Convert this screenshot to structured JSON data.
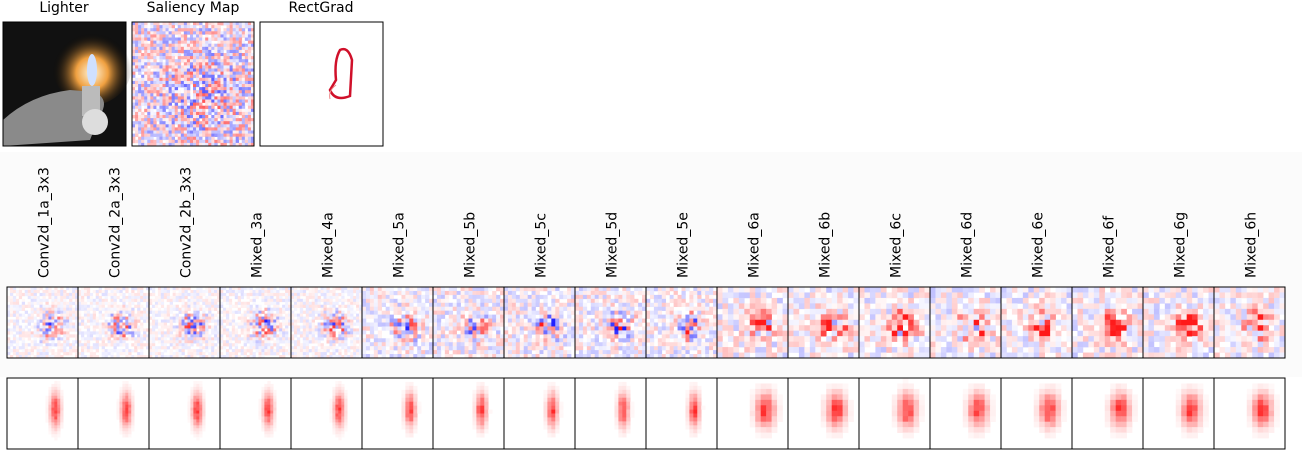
{
  "panels": [
    "Lighter",
    "Saliency Map",
    "RectGrad"
  ],
  "layers": [
    "Conv2d_1a_3x3",
    "Conv2d_2a_3x3",
    "Conv2d_2b_3x3",
    "Mixed_3a",
    "Mixed_4a",
    "Mixed_5a",
    "Mixed_5b",
    "Mixed_5c",
    "Mixed_5d",
    "Mixed_5e",
    "Mixed_6a",
    "Mixed_6b",
    "Mixed_6c",
    "Mixed_6d",
    "Mixed_6e",
    "Mixed_6f",
    "Mixed_6g",
    "Mixed_6h"
  ]
}
